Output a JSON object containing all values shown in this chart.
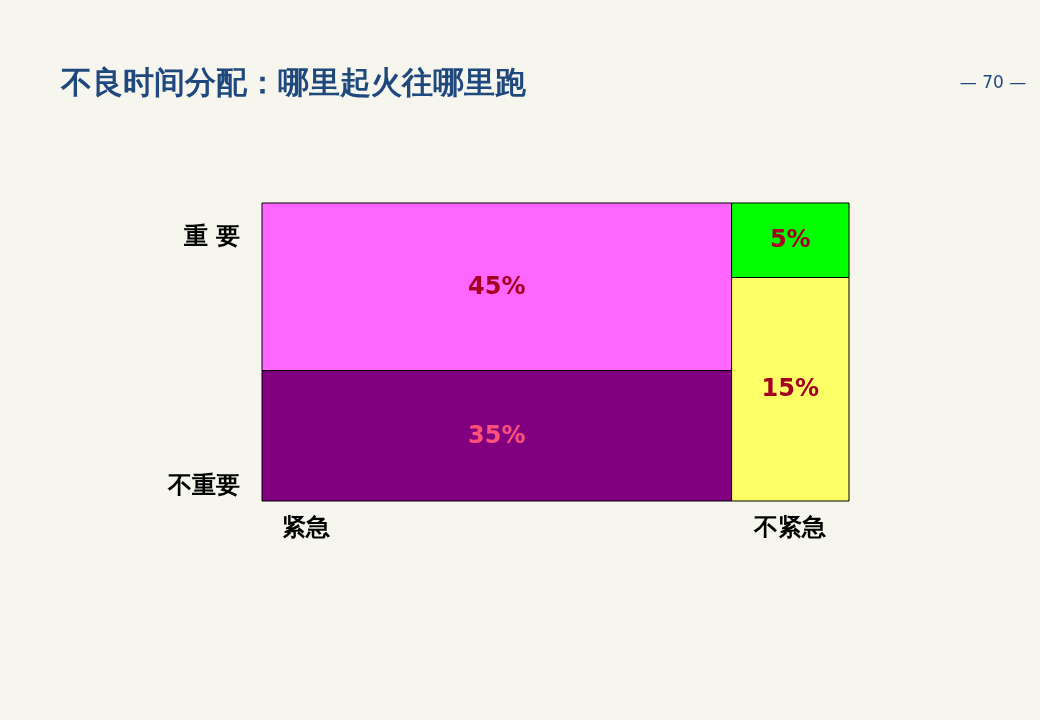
{
  "chart_data": {
    "type": "other",
    "title": "不良时间分配：哪里起火往哪里跑",
    "categories": [
      "紧急",
      "不紧急"
    ],
    "series": [
      {
        "name": "重 要",
        "colors": [
          "#ff66ff",
          "#00ff00"
        ],
        "values": [
          45,
          5
        ],
        "value_labels": [
          "45%",
          "5%"
        ]
      },
      {
        "name": "不重要",
        "colors": [
          "#800080",
          "#ffff66"
        ],
        "values": [
          35,
          15
        ],
        "value_labels": [
          "35%",
          "15%"
        ]
      }
    ],
    "annotations": [
      "— 70 —"
    ]
  }
}
